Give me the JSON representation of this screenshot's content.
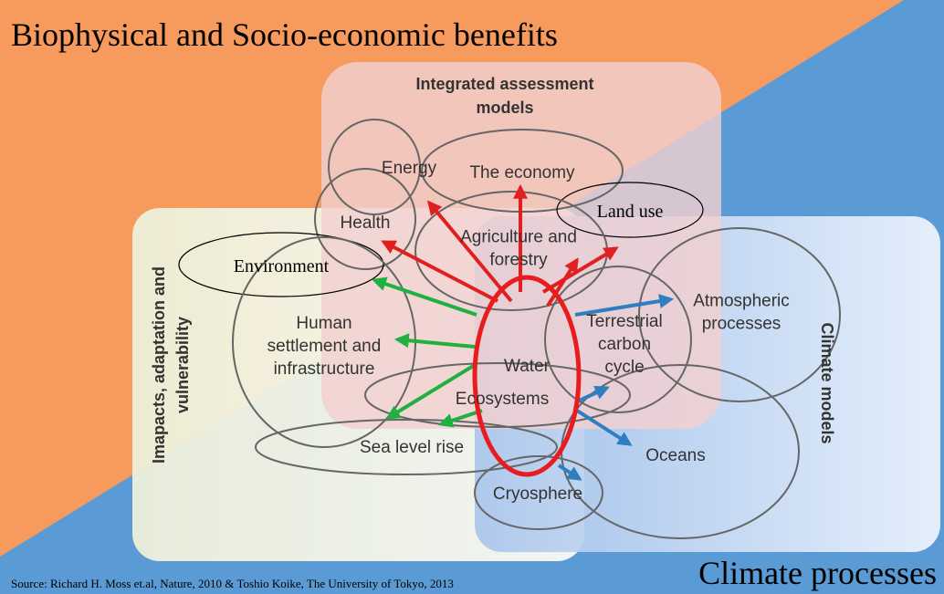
{
  "header": {
    "title": "Biophysical and Socio-economic  benefits",
    "corner": "Climate processes",
    "source": "Source: Richard H. Moss et.al, Nature, 2010 & Toshio Koike, The University of Tokyo, 2013"
  },
  "groups": [
    {
      "lines": [
        "Integrated assessment",
        "models"
      ]
    },
    {
      "lines": [
        "Imapacts, adaptation and",
        "vulnerability"
      ]
    },
    {
      "lines": [
        "Climate models"
      ]
    }
  ],
  "nodes": [
    {
      "lines": [
        "Energy"
      ]
    },
    {
      "lines": [
        "The economy"
      ]
    },
    {
      "lines": [
        "Health"
      ]
    },
    {
      "lines": [
        "Environment"
      ]
    },
    {
      "lines": [
        "Land use"
      ]
    },
    {
      "lines": [
        "Agriculture and",
        "forestry"
      ]
    },
    {
      "lines": [
        "Human",
        "settlement and",
        "infrastructure"
      ]
    },
    {
      "lines": [
        "Terrestrial",
        "carbon",
        "cycle"
      ]
    },
    {
      "lines": [
        "Atmospheric",
        "processes"
      ]
    },
    {
      "lines": [
        "Water"
      ]
    },
    {
      "lines": [
        "Ecosystems"
      ]
    },
    {
      "lines": [
        "Sea level rise"
      ]
    },
    {
      "lines": [
        "Oceans"
      ]
    },
    {
      "lines": [
        "Cryosphere"
      ]
    }
  ]
}
